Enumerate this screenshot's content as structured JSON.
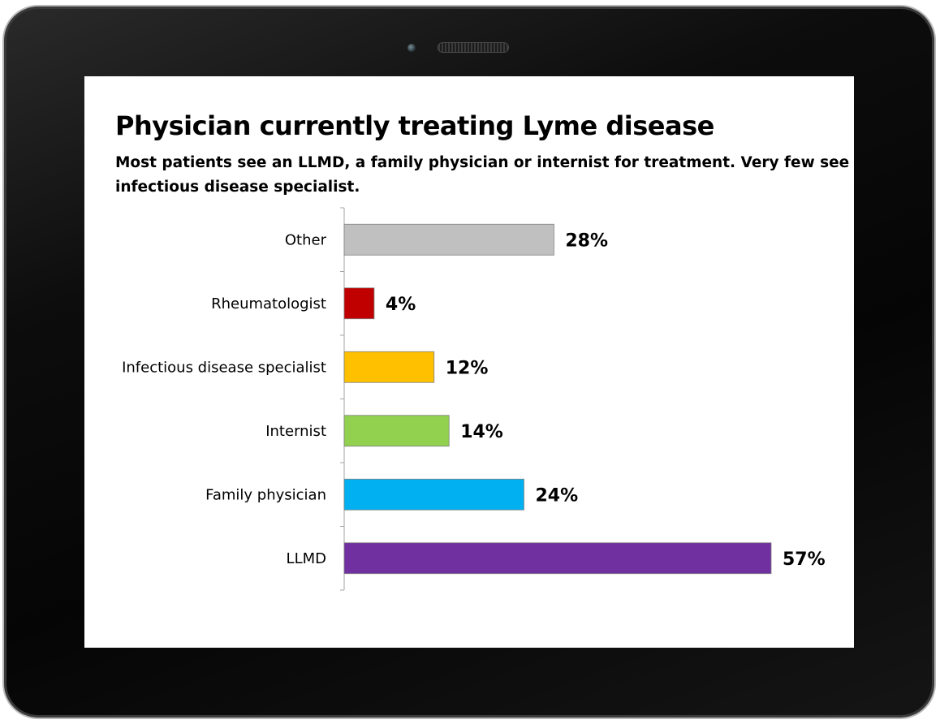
{
  "chart_data": {
    "type": "bar",
    "orientation": "horizontal",
    "title": "Physician currently treating Lyme disease",
    "subtitle": "Most patients see an LLMD, a family physician or internist for treatment.  Very few see an infectious disease specialist.",
    "categories": [
      "Other",
      "Rheumatologist",
      "Infectious disease specialist",
      "Internist",
      "Family physician",
      "LLMD"
    ],
    "values": [
      28,
      4,
      12,
      14,
      24,
      57
    ],
    "value_labels": [
      "28%",
      "4%",
      "12%",
      "14%",
      "24%",
      "57%"
    ],
    "colors": [
      "#c0c0c0",
      "#c00000",
      "#ffc000",
      "#92d050",
      "#00b0f0",
      "#7030a0"
    ],
    "unit": "%",
    "xlim": [
      0,
      60
    ],
    "xlabel": "",
    "ylabel": "",
    "grid": false,
    "legend": "none"
  }
}
